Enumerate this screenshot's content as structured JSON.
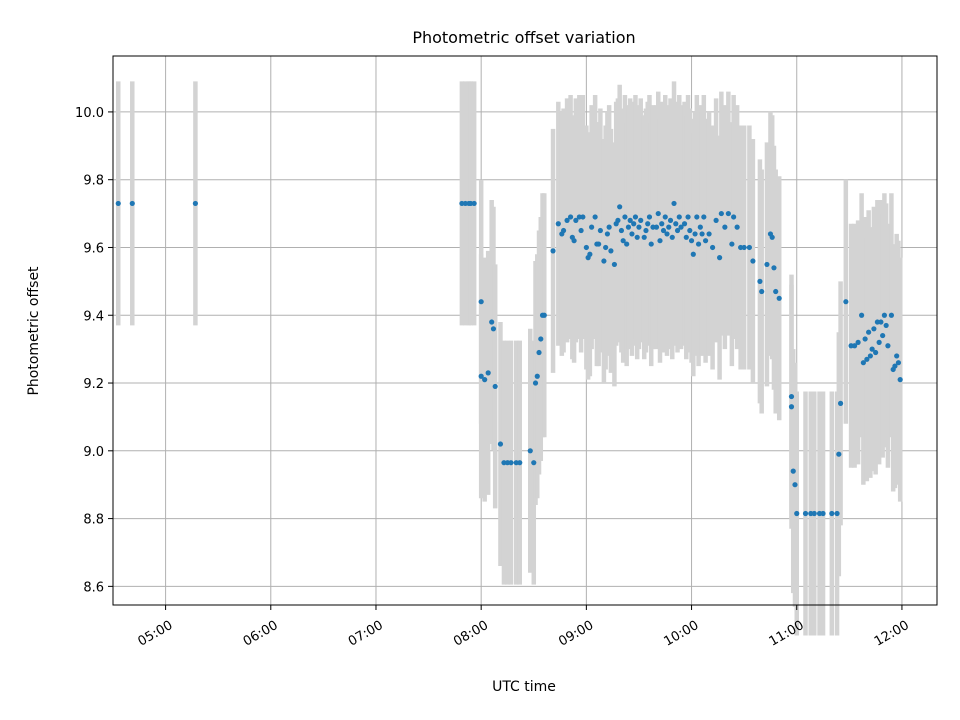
{
  "chart_data": {
    "type": "scatter",
    "title": "Photometric offset variation",
    "xlabel": "UTC time",
    "ylabel": "Photometric offset",
    "grid": true,
    "xlim": [
      "04:30",
      "12:20"
    ],
    "ylim": [
      8.545,
      10.165
    ],
    "xticks": [
      "05:00",
      "06:00",
      "07:00",
      "08:00",
      "09:00",
      "10:00",
      "11:00",
      "12:00"
    ],
    "yticks": [
      "8.6",
      "8.8",
      "9.0",
      "9.2",
      "9.4",
      "9.6",
      "9.8",
      "10.0"
    ],
    "colors": {
      "points": "#1f77b4",
      "error_bars": "#d3d3d3",
      "grid": "#b0b0b0"
    },
    "series": [
      {
        "error_bar_halfwidth": 0.36,
        "points": [
          {
            "x": "04:33",
            "y": 9.73
          },
          {
            "x": "04:41",
            "y": 9.73
          },
          {
            "x": "05:17",
            "y": 9.73
          },
          {
            "x": "07:49",
            "y": 9.73
          },
          {
            "x": "07:51",
            "y": 9.73
          },
          {
            "x": "07:53",
            "y": 9.73
          },
          {
            "x": "07:54",
            "y": 9.73
          },
          {
            "x": "07:56",
            "y": 9.73
          },
          {
            "x": "08:00",
            "y": 9.44
          },
          {
            "x": "08:00",
            "y": 9.22
          },
          {
            "x": "08:02",
            "y": 9.21
          },
          {
            "x": "08:04",
            "y": 9.23
          },
          {
            "x": "08:06",
            "y": 9.38
          },
          {
            "x": "08:07",
            "y": 9.36
          },
          {
            "x": "08:08",
            "y": 9.19
          },
          {
            "x": "08:11",
            "y": 9.02
          },
          {
            "x": "08:13",
            "y": 8.965
          },
          {
            "x": "08:15",
            "y": 8.965
          },
          {
            "x": "08:17",
            "y": 8.965
          },
          {
            "x": "08:20",
            "y": 8.965
          },
          {
            "x": "08:22",
            "y": 8.965
          },
          {
            "x": "08:28",
            "y": 9.0
          },
          {
            "x": "08:30",
            "y": 8.965
          },
          {
            "x": "08:31",
            "y": 9.2
          },
          {
            "x": "08:32",
            "y": 9.22
          },
          {
            "x": "08:33",
            "y": 9.29
          },
          {
            "x": "08:34",
            "y": 9.33
          },
          {
            "x": "08:35",
            "y": 9.4
          },
          {
            "x": "08:36",
            "y": 9.4
          },
          {
            "x": "08:41",
            "y": 9.59
          },
          {
            "x": "08:44",
            "y": 9.67
          },
          {
            "x": "08:46",
            "y": 9.64
          },
          {
            "x": "08:47",
            "y": 9.65
          },
          {
            "x": "08:49",
            "y": 9.68
          },
          {
            "x": "08:51",
            "y": 9.69
          },
          {
            "x": "08:52",
            "y": 9.63
          },
          {
            "x": "08:53",
            "y": 9.62
          },
          {
            "x": "08:54",
            "y": 9.68
          },
          {
            "x": "08:56",
            "y": 9.69
          },
          {
            "x": "08:57",
            "y": 9.65
          },
          {
            "x": "08:58",
            "y": 9.69
          },
          {
            "x": "09:00",
            "y": 9.6
          },
          {
            "x": "09:01",
            "y": 9.57
          },
          {
            "x": "09:02",
            "y": 9.58
          },
          {
            "x": "09:03",
            "y": 9.66
          },
          {
            "x": "09:05",
            "y": 9.69
          },
          {
            "x": "09:06",
            "y": 9.61
          },
          {
            "x": "09:07",
            "y": 9.61
          },
          {
            "x": "09:08",
            "y": 9.65
          },
          {
            "x": "09:10",
            "y": 9.56
          },
          {
            "x": "09:11",
            "y": 9.6
          },
          {
            "x": "09:12",
            "y": 9.64
          },
          {
            "x": "09:13",
            "y": 9.66
          },
          {
            "x": "09:14",
            "y": 9.59
          },
          {
            "x": "09:16",
            "y": 9.55
          },
          {
            "x": "09:17",
            "y": 9.67
          },
          {
            "x": "09:18",
            "y": 9.68
          },
          {
            "x": "09:19",
            "y": 9.72
          },
          {
            "x": "09:20",
            "y": 9.65
          },
          {
            "x": "09:21",
            "y": 9.62
          },
          {
            "x": "09:22",
            "y": 9.69
          },
          {
            "x": "09:23",
            "y": 9.61
          },
          {
            "x": "09:24",
            "y": 9.66
          },
          {
            "x": "09:25",
            "y": 9.68
          },
          {
            "x": "09:26",
            "y": 9.64
          },
          {
            "x": "09:27",
            "y": 9.67
          },
          {
            "x": "09:28",
            "y": 9.69
          },
          {
            "x": "09:29",
            "y": 9.63
          },
          {
            "x": "09:30",
            "y": 9.66
          },
          {
            "x": "09:31",
            "y": 9.68
          },
          {
            "x": "09:33",
            "y": 9.63
          },
          {
            "x": "09:34",
            "y": 9.65
          },
          {
            "x": "09:35",
            "y": 9.67
          },
          {
            "x": "09:36",
            "y": 9.69
          },
          {
            "x": "09:37",
            "y": 9.61
          },
          {
            "x": "09:38",
            "y": 9.66
          },
          {
            "x": "09:40",
            "y": 9.66
          },
          {
            "x": "09:41",
            "y": 9.7
          },
          {
            "x": "09:42",
            "y": 9.62
          },
          {
            "x": "09:43",
            "y": 9.67
          },
          {
            "x": "09:44",
            "y": 9.65
          },
          {
            "x": "09:45",
            "y": 9.69
          },
          {
            "x": "09:46",
            "y": 9.64
          },
          {
            "x": "09:47",
            "y": 9.66
          },
          {
            "x": "09:48",
            "y": 9.68
          },
          {
            "x": "09:49",
            "y": 9.63
          },
          {
            "x": "09:50",
            "y": 9.73
          },
          {
            "x": "09:51",
            "y": 9.67
          },
          {
            "x": "09:52",
            "y": 9.65
          },
          {
            "x": "09:53",
            "y": 9.69
          },
          {
            "x": "09:54",
            "y": 9.66
          },
          {
            "x": "09:56",
            "y": 9.67
          },
          {
            "x": "09:57",
            "y": 9.63
          },
          {
            "x": "09:58",
            "y": 9.69
          },
          {
            "x": "09:59",
            "y": 9.65
          },
          {
            "x": "10:00",
            "y": 9.62
          },
          {
            "x": "10:01",
            "y": 9.58
          },
          {
            "x": "10:02",
            "y": 9.64
          },
          {
            "x": "10:03",
            "y": 9.69
          },
          {
            "x": "10:04",
            "y": 9.61
          },
          {
            "x": "10:05",
            "y": 9.66
          },
          {
            "x": "10:06",
            "y": 9.64
          },
          {
            "x": "10:07",
            "y": 9.69
          },
          {
            "x": "10:08",
            "y": 9.62
          },
          {
            "x": "10:10",
            "y": 9.64
          },
          {
            "x": "10:12",
            "y": 9.6
          },
          {
            "x": "10:14",
            "y": 9.68
          },
          {
            "x": "10:16",
            "y": 9.57
          },
          {
            "x": "10:17",
            "y": 9.7
          },
          {
            "x": "10:19",
            "y": 9.66
          },
          {
            "x": "10:21",
            "y": 9.7
          },
          {
            "x": "10:23",
            "y": 9.61
          },
          {
            "x": "10:24",
            "y": 9.69
          },
          {
            "x": "10:26",
            "y": 9.66
          },
          {
            "x": "10:28",
            "y": 9.6
          },
          {
            "x": "10:30",
            "y": 9.6
          },
          {
            "x": "10:33",
            "y": 9.6
          },
          {
            "x": "10:35",
            "y": 9.56
          },
          {
            "x": "10:39",
            "y": 9.5
          },
          {
            "x": "10:40",
            "y": 9.47
          },
          {
            "x": "10:43",
            "y": 9.55
          },
          {
            "x": "10:45",
            "y": 9.64
          },
          {
            "x": "10:46",
            "y": 9.63
          },
          {
            "x": "10:47",
            "y": 9.54
          },
          {
            "x": "10:48",
            "y": 9.47
          },
          {
            "x": "10:50",
            "y": 9.45
          },
          {
            "x": "10:57",
            "y": 9.16
          },
          {
            "x": "10:57",
            "y": 9.13
          },
          {
            "x": "10:58",
            "y": 8.94
          },
          {
            "x": "10:59",
            "y": 8.9
          },
          {
            "x": "11:00",
            "y": 8.815
          },
          {
            "x": "11:05",
            "y": 8.815
          },
          {
            "x": "11:08",
            "y": 8.815
          },
          {
            "x": "11:10",
            "y": 8.815
          },
          {
            "x": "11:13",
            "y": 8.815
          },
          {
            "x": "11:15",
            "y": 8.815
          },
          {
            "x": "11:20",
            "y": 8.815
          },
          {
            "x": "11:23",
            "y": 8.815
          },
          {
            "x": "11:24",
            "y": 8.99
          },
          {
            "x": "11:25",
            "y": 9.14
          },
          {
            "x": "11:28",
            "y": 9.44
          },
          {
            "x": "11:31",
            "y": 9.31
          },
          {
            "x": "11:33",
            "y": 9.31
          },
          {
            "x": "11:35",
            "y": 9.32
          },
          {
            "x": "11:37",
            "y": 9.4
          },
          {
            "x": "11:38",
            "y": 9.26
          },
          {
            "x": "11:39",
            "y": 9.33
          },
          {
            "x": "11:40",
            "y": 9.27
          },
          {
            "x": "11:41",
            "y": 9.35
          },
          {
            "x": "11:42",
            "y": 9.28
          },
          {
            "x": "11:43",
            "y": 9.3
          },
          {
            "x": "11:44",
            "y": 9.36
          },
          {
            "x": "11:45",
            "y": 9.29
          },
          {
            "x": "11:46",
            "y": 9.38
          },
          {
            "x": "11:47",
            "y": 9.32
          },
          {
            "x": "11:48",
            "y": 9.38
          },
          {
            "x": "11:49",
            "y": 9.34
          },
          {
            "x": "11:50",
            "y": 9.4
          },
          {
            "x": "11:51",
            "y": 9.37
          },
          {
            "x": "11:52",
            "y": 9.31
          },
          {
            "x": "11:54",
            "y": 9.4
          },
          {
            "x": "11:55",
            "y": 9.24
          },
          {
            "x": "11:56",
            "y": 9.25
          },
          {
            "x": "11:57",
            "y": 9.28
          },
          {
            "x": "11:58",
            "y": 9.26
          },
          {
            "x": "11:59",
            "y": 9.21
          }
        ]
      }
    ]
  }
}
